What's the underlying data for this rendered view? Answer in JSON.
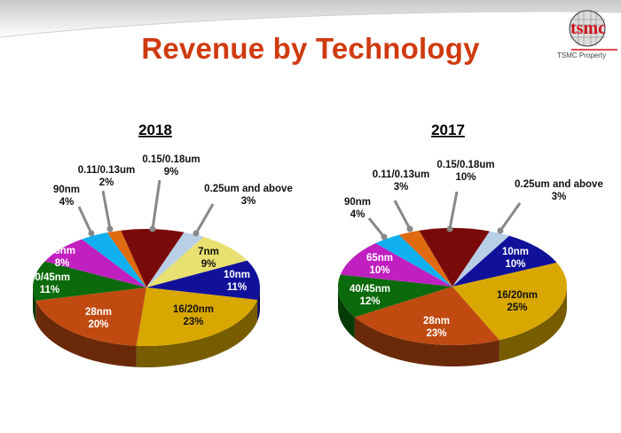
{
  "header": {
    "title": "Revenue by Technology",
    "logo_text": "tsmc",
    "logo_caption": "TSMC Property"
  },
  "chart_data": [
    {
      "type": "pie",
      "title": "2018",
      "categories": [
        "0.15/0.18um",
        "0.25um and above",
        "7nm",
        "10nm",
        "16/20nm",
        "28nm",
        "40/45nm",
        "65nm",
        "90nm",
        "0.11/0.13um"
      ],
      "values": [
        9,
        3,
        9,
        11,
        23,
        20,
        11,
        8,
        4,
        2
      ],
      "labels": [
        "9%",
        "3%",
        "9%",
        "11%",
        "23%",
        "20%",
        "11%",
        "8%",
        "4%",
        "2%"
      ],
      "colors": [
        "#7a0a0a",
        "#b8cfe6",
        "#e8e070",
        "#10109a",
        "#d8a800",
        "#c04a10",
        "#0b6a0b",
        "#c020c0",
        "#10b0f0",
        "#e06a10"
      ],
      "style": "3d"
    },
    {
      "type": "pie",
      "title": "2017",
      "categories": [
        "0.15/0.18um",
        "0.25um and above",
        "10nm",
        "16/20nm",
        "28nm",
        "40/45nm",
        "65nm",
        "90nm",
        "0.11/0.13um"
      ],
      "values": [
        10,
        3,
        10,
        25,
        23,
        12,
        10,
        4,
        3
      ],
      "labels": [
        "10%",
        "3%",
        "10%",
        "25%",
        "23%",
        "12%",
        "10%",
        "4%",
        "3%"
      ],
      "colors": [
        "#7a0a0a",
        "#b8cfe6",
        "#10109a",
        "#d8a800",
        "#c04a10",
        "#0b6a0b",
        "#c020c0",
        "#10b0f0",
        "#e06a10"
      ],
      "style": "3d"
    }
  ]
}
